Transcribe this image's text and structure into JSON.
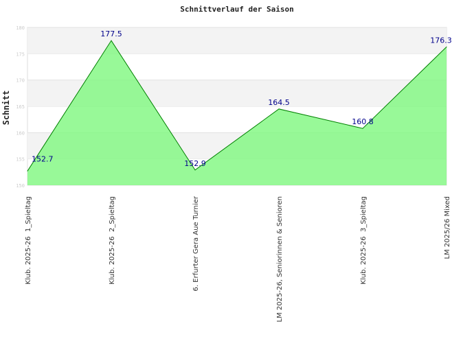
{
  "chart_data": {
    "type": "area",
    "title": "Schnittverlauf der Saison",
    "xlabel": "",
    "ylabel": "Schnitt",
    "ylim": [
      150,
      180
    ],
    "yticks": [
      150,
      155,
      160,
      165,
      170,
      175,
      180
    ],
    "grid": true,
    "categories": [
      "Klub. 2025-26  1_Spieltag",
      "Klub. 2025-26  2_Spieltag",
      "6. Erfurter Gera Aue Turnier",
      "LM 2025-26, Seniorinnen & Senioren",
      "Klub. 2025-26  3_Spieltag",
      "LM 2025/26 Mixed"
    ],
    "values": [
      152.7,
      177.5,
      152.9,
      164.5,
      160.8,
      176.3
    ],
    "data_labels": [
      "152.7",
      "177.5",
      "152.9",
      "164.5",
      "160.8",
      "176.3"
    ],
    "colors": {
      "fill": "#7ef77e",
      "line": "#008000",
      "label": "#00008b",
      "band": "#f3f3f3"
    }
  }
}
